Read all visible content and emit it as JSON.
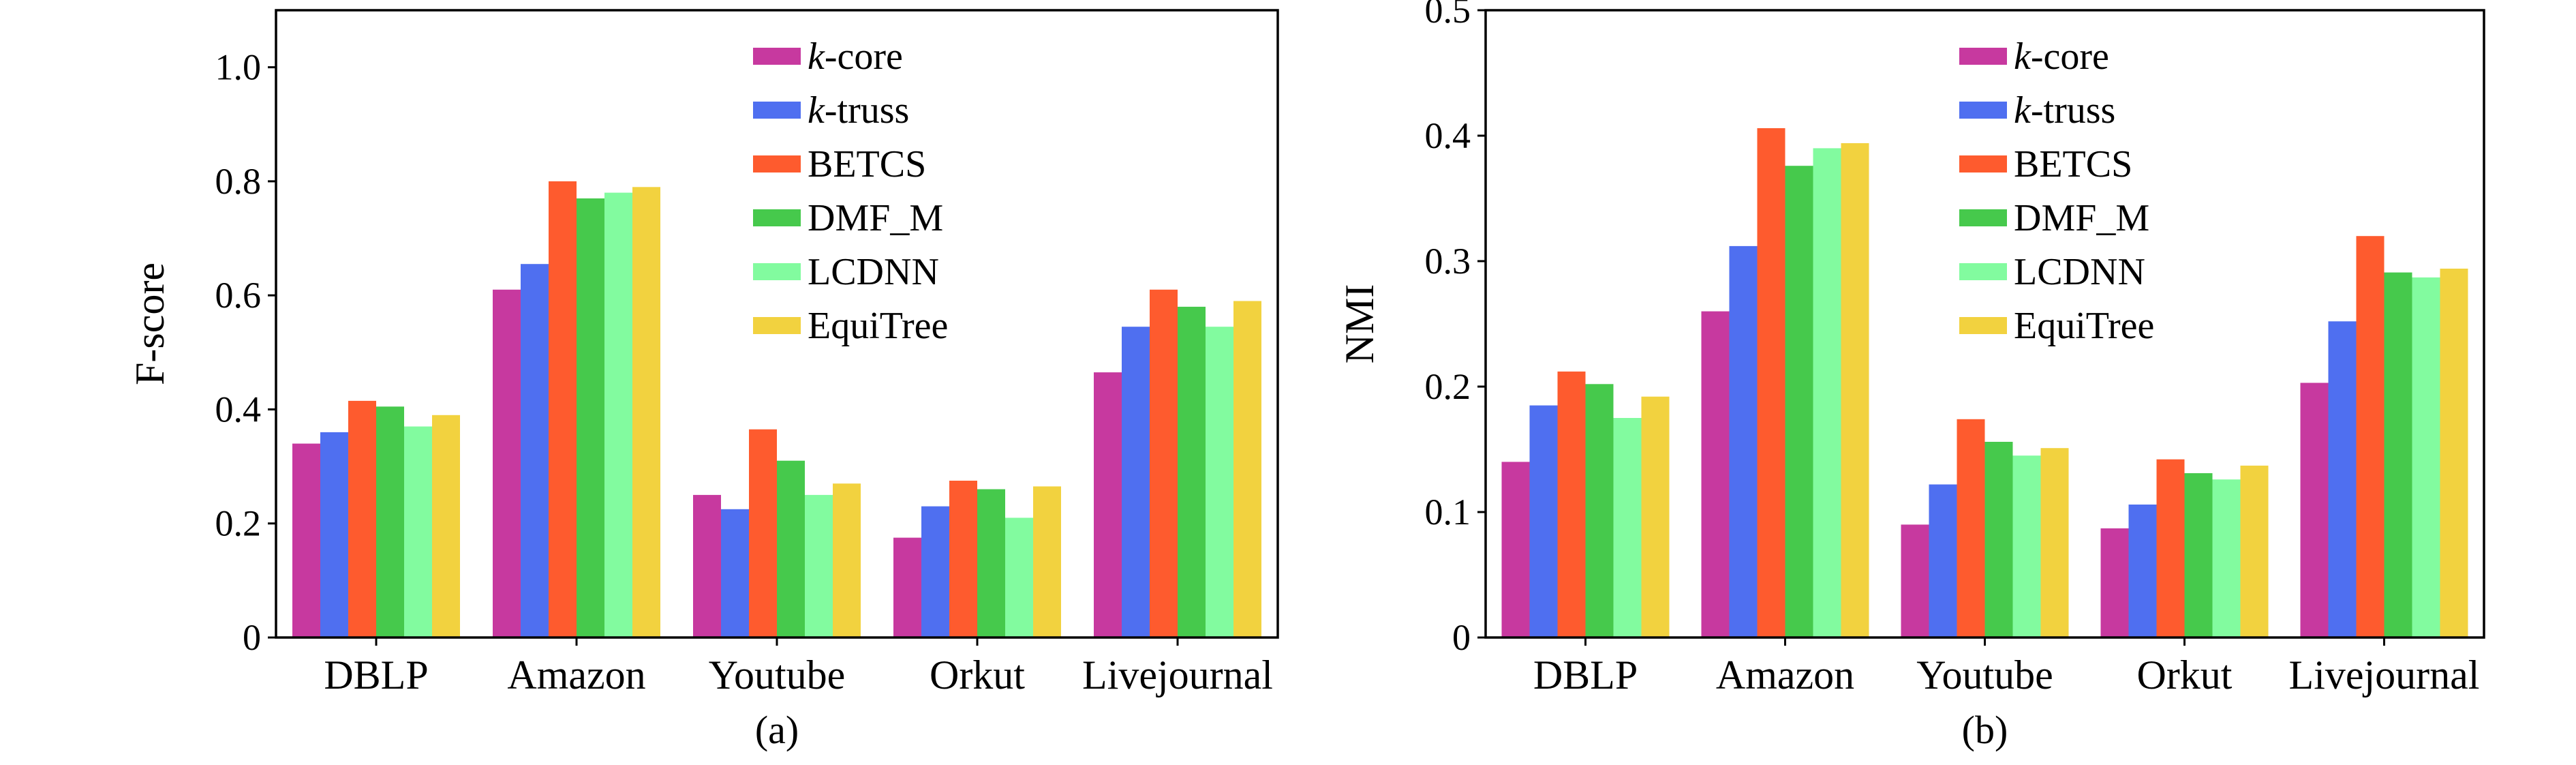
{
  "chart_data": [
    {
      "type": "bar",
      "sublabel": "(a)",
      "ylabel": "F-score",
      "xlabel": "",
      "ylim": [
        0,
        1.1
      ],
      "yticks": [
        "0",
        "0.2",
        "0.4",
        "0.6",
        "0.8",
        "1.0"
      ],
      "ytick_values": [
        0,
        0.2,
        0.4,
        0.6,
        0.8,
        1.0
      ],
      "categories": [
        "DBLP",
        "Amazon",
        "Youtube",
        "Orkut",
        "Livejournal"
      ],
      "legend_position": "upper-middle",
      "series": [
        {
          "name": "k-core",
          "values": [
            0.34,
            0.61,
            0.25,
            0.175,
            0.465
          ]
        },
        {
          "name": "k-truss",
          "values": [
            0.36,
            0.655,
            0.225,
            0.23,
            0.545
          ]
        },
        {
          "name": "BETCS",
          "values": [
            0.415,
            0.8,
            0.365,
            0.275,
            0.61
          ]
        },
        {
          "name": "DMF_M",
          "values": [
            0.405,
            0.77,
            0.31,
            0.26,
            0.58
          ]
        },
        {
          "name": "LCDNN",
          "values": [
            0.37,
            0.78,
            0.25,
            0.21,
            0.545
          ]
        },
        {
          "name": "EquiTree",
          "values": [
            0.39,
            0.79,
            0.27,
            0.265,
            0.59
          ]
        }
      ]
    },
    {
      "type": "bar",
      "sublabel": "(b)",
      "ylabel": "NMI",
      "xlabel": "",
      "ylim": [
        0,
        0.5
      ],
      "yticks": [
        "0",
        "0.1",
        "0.2",
        "0.3",
        "0.4",
        "0.5"
      ],
      "ytick_values": [
        0,
        0.1,
        0.2,
        0.3,
        0.4,
        0.5
      ],
      "categories": [
        "DBLP",
        "Amazon",
        "Youtube",
        "Orkut",
        "Livejournal"
      ],
      "legend_position": "upper-middle",
      "series": [
        {
          "name": "k-core",
          "values": [
            0.14,
            0.26,
            0.09,
            0.087,
            0.203
          ]
        },
        {
          "name": "k-truss",
          "values": [
            0.185,
            0.312,
            0.122,
            0.106,
            0.252
          ]
        },
        {
          "name": "BETCS",
          "values": [
            0.212,
            0.406,
            0.174,
            0.142,
            0.32
          ]
        },
        {
          "name": "DMF_M",
          "values": [
            0.202,
            0.376,
            0.156,
            0.131,
            0.291
          ]
        },
        {
          "name": "LCDNN",
          "values": [
            0.175,
            0.39,
            0.145,
            0.126,
            0.287
          ]
        },
        {
          "name": "EquiTree",
          "values": [
            0.192,
            0.394,
            0.151,
            0.137,
            0.294
          ]
        }
      ]
    }
  ],
  "colors": [
    "#c7399f",
    "#4f6ff0",
    "#fe5b2e",
    "#46c94c",
    "#82fb9f",
    "#f2d23f"
  ]
}
